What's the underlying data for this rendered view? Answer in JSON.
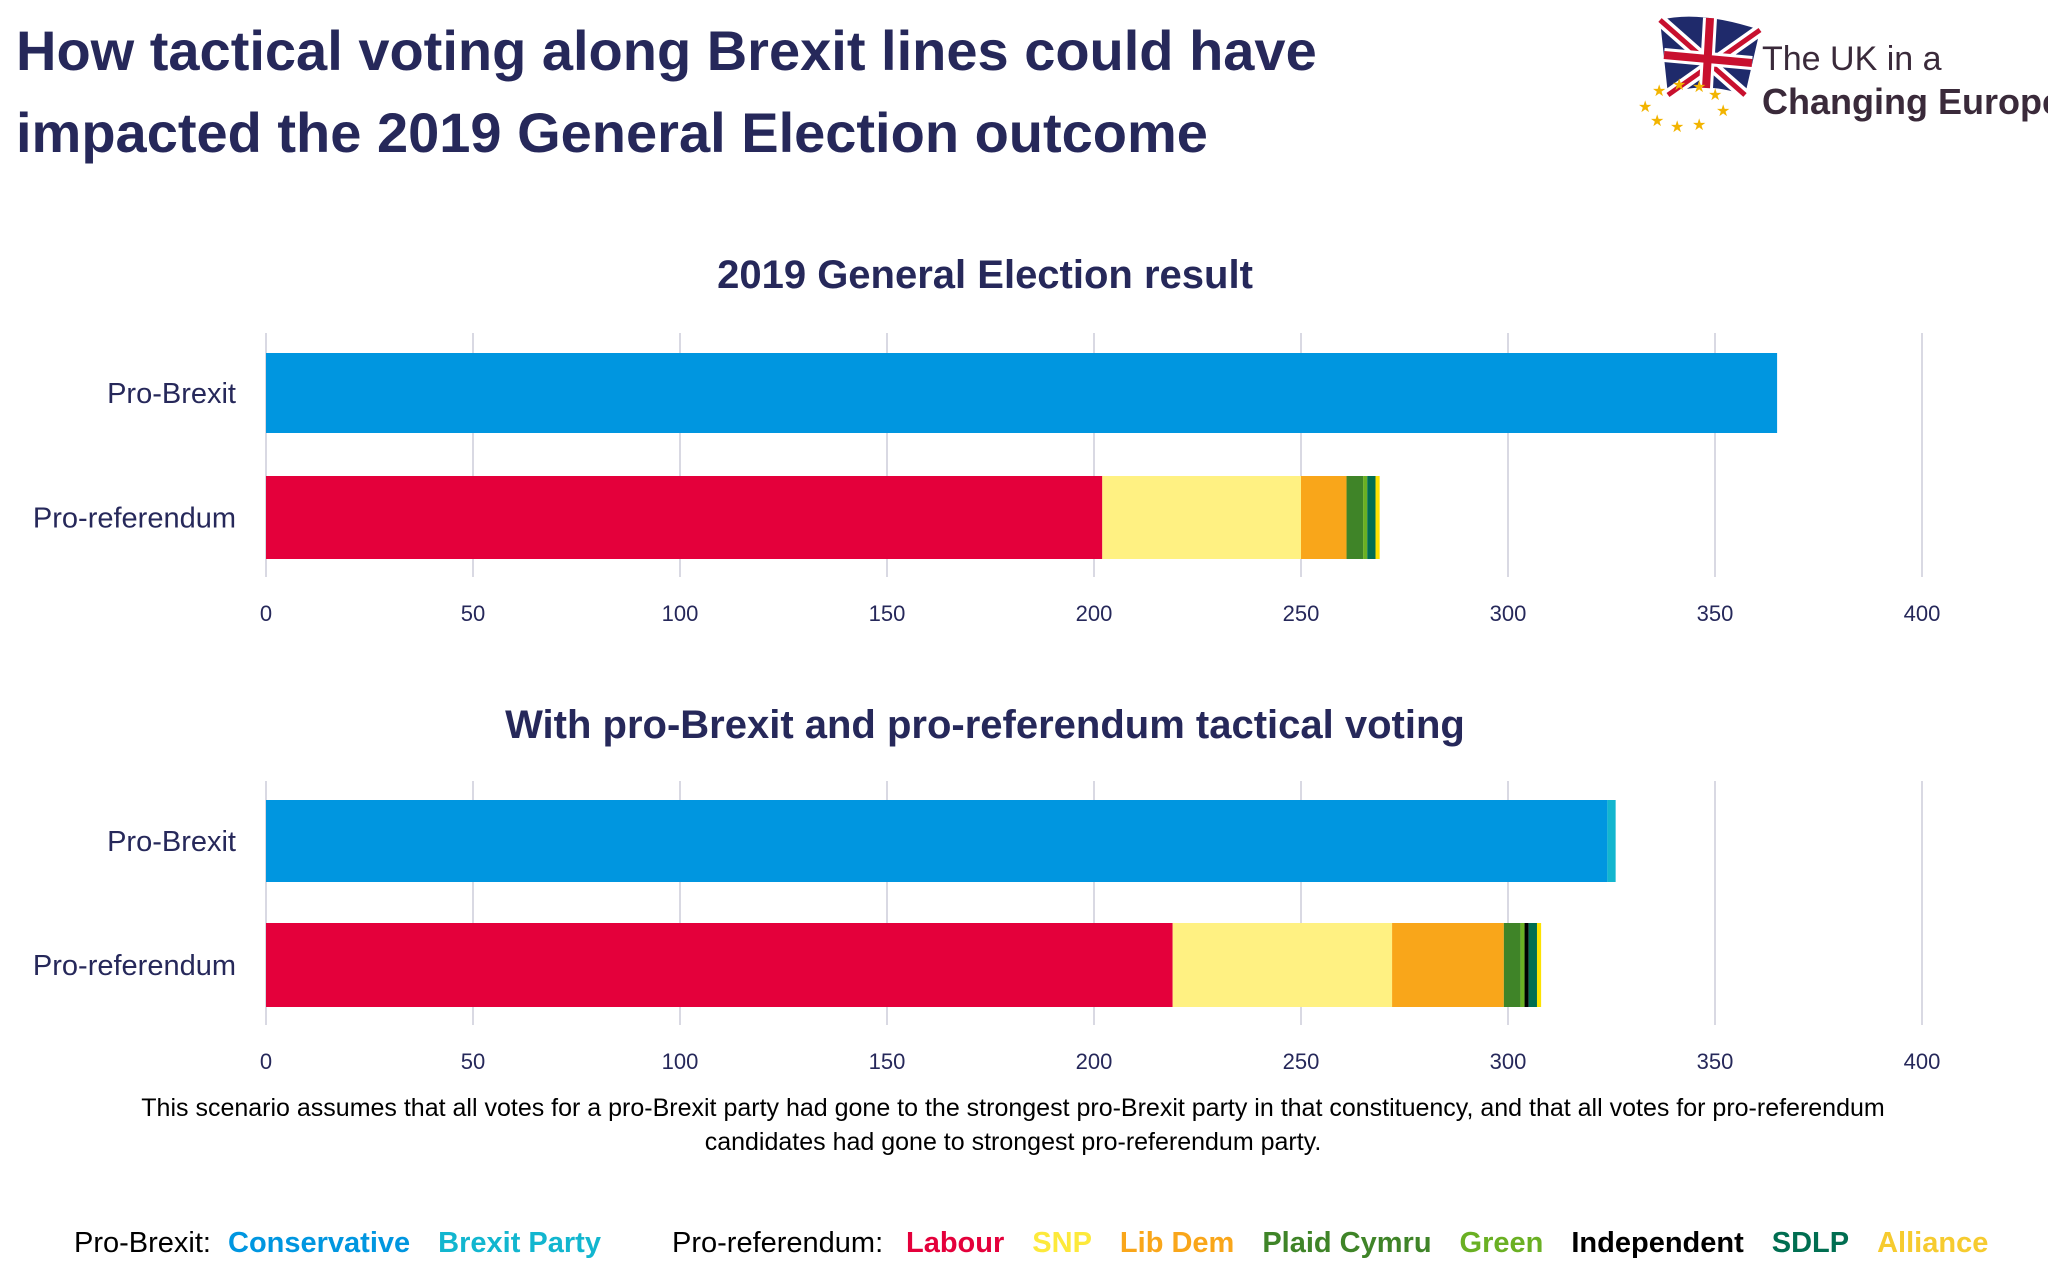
{
  "title_lines": [
    "How tactical voting along Brexit lines could have",
    "impacted the 2019 General Election outcome"
  ],
  "logo": {
    "line1": "The UK in a",
    "line2": "Changing Europe"
  },
  "note_lines": [
    "This scenario assumes that all votes for a pro-Brexit party had gone to the strongest pro-Brexit party in that constituency, and that all votes for pro-referendum",
    "candidates had gone to strongest pro-referendum party."
  ],
  "legend": {
    "pro_brexit_label": "Pro-Brexit:",
    "pro_ref_label": "Pro-referendum:",
    "pro_brexit": [
      {
        "name": "Conservative",
        "color": "#0096e0"
      },
      {
        "name": "Brexit Party",
        "color": "#12b6cf"
      }
    ],
    "pro_ref": [
      {
        "name": "Labour",
        "color": "#e4003b"
      },
      {
        "name": "SNP",
        "color": "#fde93b"
      },
      {
        "name": "Lib Dem",
        "color": "#f9a61a"
      },
      {
        "name": "Plaid Cymru",
        "color": "#3f8428"
      },
      {
        "name": "Green",
        "color": "#6ab023"
      },
      {
        "name": "Independent",
        "color": "#000000"
      },
      {
        "name": "SDLP",
        "color": "#006e51"
      },
      {
        "name": "Alliance",
        "color": "#f6cb2f"
      }
    ]
  },
  "chart_data": [
    {
      "type": "bar",
      "orientation": "horizontal",
      "stacked": true,
      "title": "2019 General Election result",
      "categories": [
        "Pro-Brexit",
        "Pro-referendum"
      ],
      "xlim": [
        0,
        400
      ],
      "ticks": [
        0,
        50,
        100,
        150,
        200,
        250,
        300,
        350,
        400
      ],
      "grid": true,
      "series": [
        {
          "name": "Conservative",
          "color": "#0096e0",
          "values": [
            365,
            0
          ]
        },
        {
          "name": "Brexit Party",
          "color": "#12b6cf",
          "values": [
            0,
            0
          ]
        },
        {
          "name": "Labour",
          "color": "#e4003b",
          "values": [
            0,
            202
          ]
        },
        {
          "name": "SNP",
          "color": "#fff182",
          "values": [
            0,
            48
          ]
        },
        {
          "name": "Lib Dem",
          "color": "#f9a61a",
          "values": [
            0,
            11
          ]
        },
        {
          "name": "Plaid Cymru",
          "color": "#3f8428",
          "values": [
            0,
            4
          ]
        },
        {
          "name": "Green",
          "color": "#6ab023",
          "values": [
            0,
            1
          ]
        },
        {
          "name": "Independent",
          "color": "#000000",
          "values": [
            0,
            0
          ]
        },
        {
          "name": "SDLP",
          "color": "#006e51",
          "values": [
            0,
            2
          ]
        },
        {
          "name": "Alliance",
          "color": "#fde200",
          "values": [
            0,
            1
          ]
        }
      ]
    },
    {
      "type": "bar",
      "orientation": "horizontal",
      "stacked": true,
      "title": "With pro-Brexit and pro-referendum tactical voting",
      "categories": [
        "Pro-Brexit",
        "Pro-referendum"
      ],
      "xlim": [
        0,
        400
      ],
      "ticks": [
        0,
        50,
        100,
        150,
        200,
        250,
        300,
        350,
        400
      ],
      "grid": true,
      "series": [
        {
          "name": "Conservative",
          "color": "#0096e0",
          "values": [
            324,
            0
          ]
        },
        {
          "name": "Brexit Party",
          "color": "#12b6cf",
          "values": [
            2,
            0
          ]
        },
        {
          "name": "Labour",
          "color": "#e4003b",
          "values": [
            0,
            219
          ]
        },
        {
          "name": "SNP",
          "color": "#fff182",
          "values": [
            0,
            53
          ]
        },
        {
          "name": "Lib Dem",
          "color": "#f9a61a",
          "values": [
            0,
            27
          ]
        },
        {
          "name": "Plaid Cymru",
          "color": "#3f8428",
          "values": [
            0,
            4
          ]
        },
        {
          "name": "Green",
          "color": "#6ab023",
          "values": [
            0,
            1
          ]
        },
        {
          "name": "Independent",
          "color": "#000000",
          "values": [
            0,
            1
          ]
        },
        {
          "name": "SDLP",
          "color": "#006e51",
          "values": [
            0,
            2
          ]
        },
        {
          "name": "Alliance",
          "color": "#fde200",
          "values": [
            0,
            1
          ]
        }
      ]
    }
  ]
}
